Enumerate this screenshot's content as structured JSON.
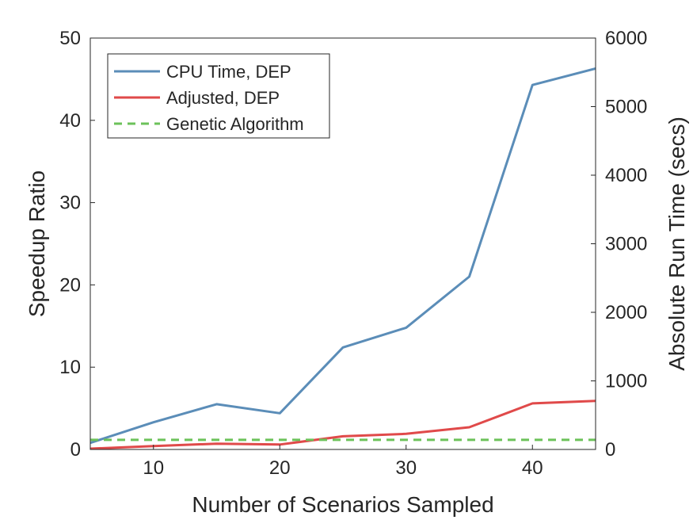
{
  "chart_data": {
    "type": "line",
    "xlabel": "Number of Scenarios Sampled",
    "ylabel_left": "Speedup Ratio",
    "ylabel_right": "Absolute Run Time (secs)",
    "xlim": [
      5,
      45
    ],
    "ylim_left": [
      0,
      50
    ],
    "ylim_right": [
      0,
      6000
    ],
    "xticks": [
      10,
      20,
      30,
      40
    ],
    "yticks_left": [
      0,
      10,
      20,
      30,
      40,
      50
    ],
    "yticks_right": [
      0,
      1000,
      2000,
      3000,
      4000,
      5000,
      6000
    ],
    "grid": false,
    "legend_position": "top-left",
    "series": [
      {
        "name": "CPU Time, DEP",
        "axis": "left",
        "color": "#5b8db8",
        "dash": "solid",
        "x": [
          5,
          10,
          15,
          20,
          25,
          30,
          35,
          40,
          45
        ],
        "y": [
          0.8,
          3.3,
          5.5,
          4.4,
          12.4,
          14.8,
          21.0,
          44.3,
          46.3
        ]
      },
      {
        "name": "Adjusted, DEP",
        "axis": "left",
        "color": "#e04a4a",
        "dash": "solid",
        "x": [
          5,
          10,
          15,
          20,
          25,
          30,
          35,
          40,
          45
        ],
        "y": [
          0.1,
          0.4,
          0.7,
          0.6,
          1.6,
          1.9,
          2.7,
          5.6,
          5.9
        ]
      },
      {
        "name": "Genetic Algorithm",
        "axis": "right",
        "color": "#6cc25a",
        "dash": "dashed",
        "x": [
          5,
          45
        ],
        "y": [
          140,
          140
        ]
      }
    ]
  }
}
